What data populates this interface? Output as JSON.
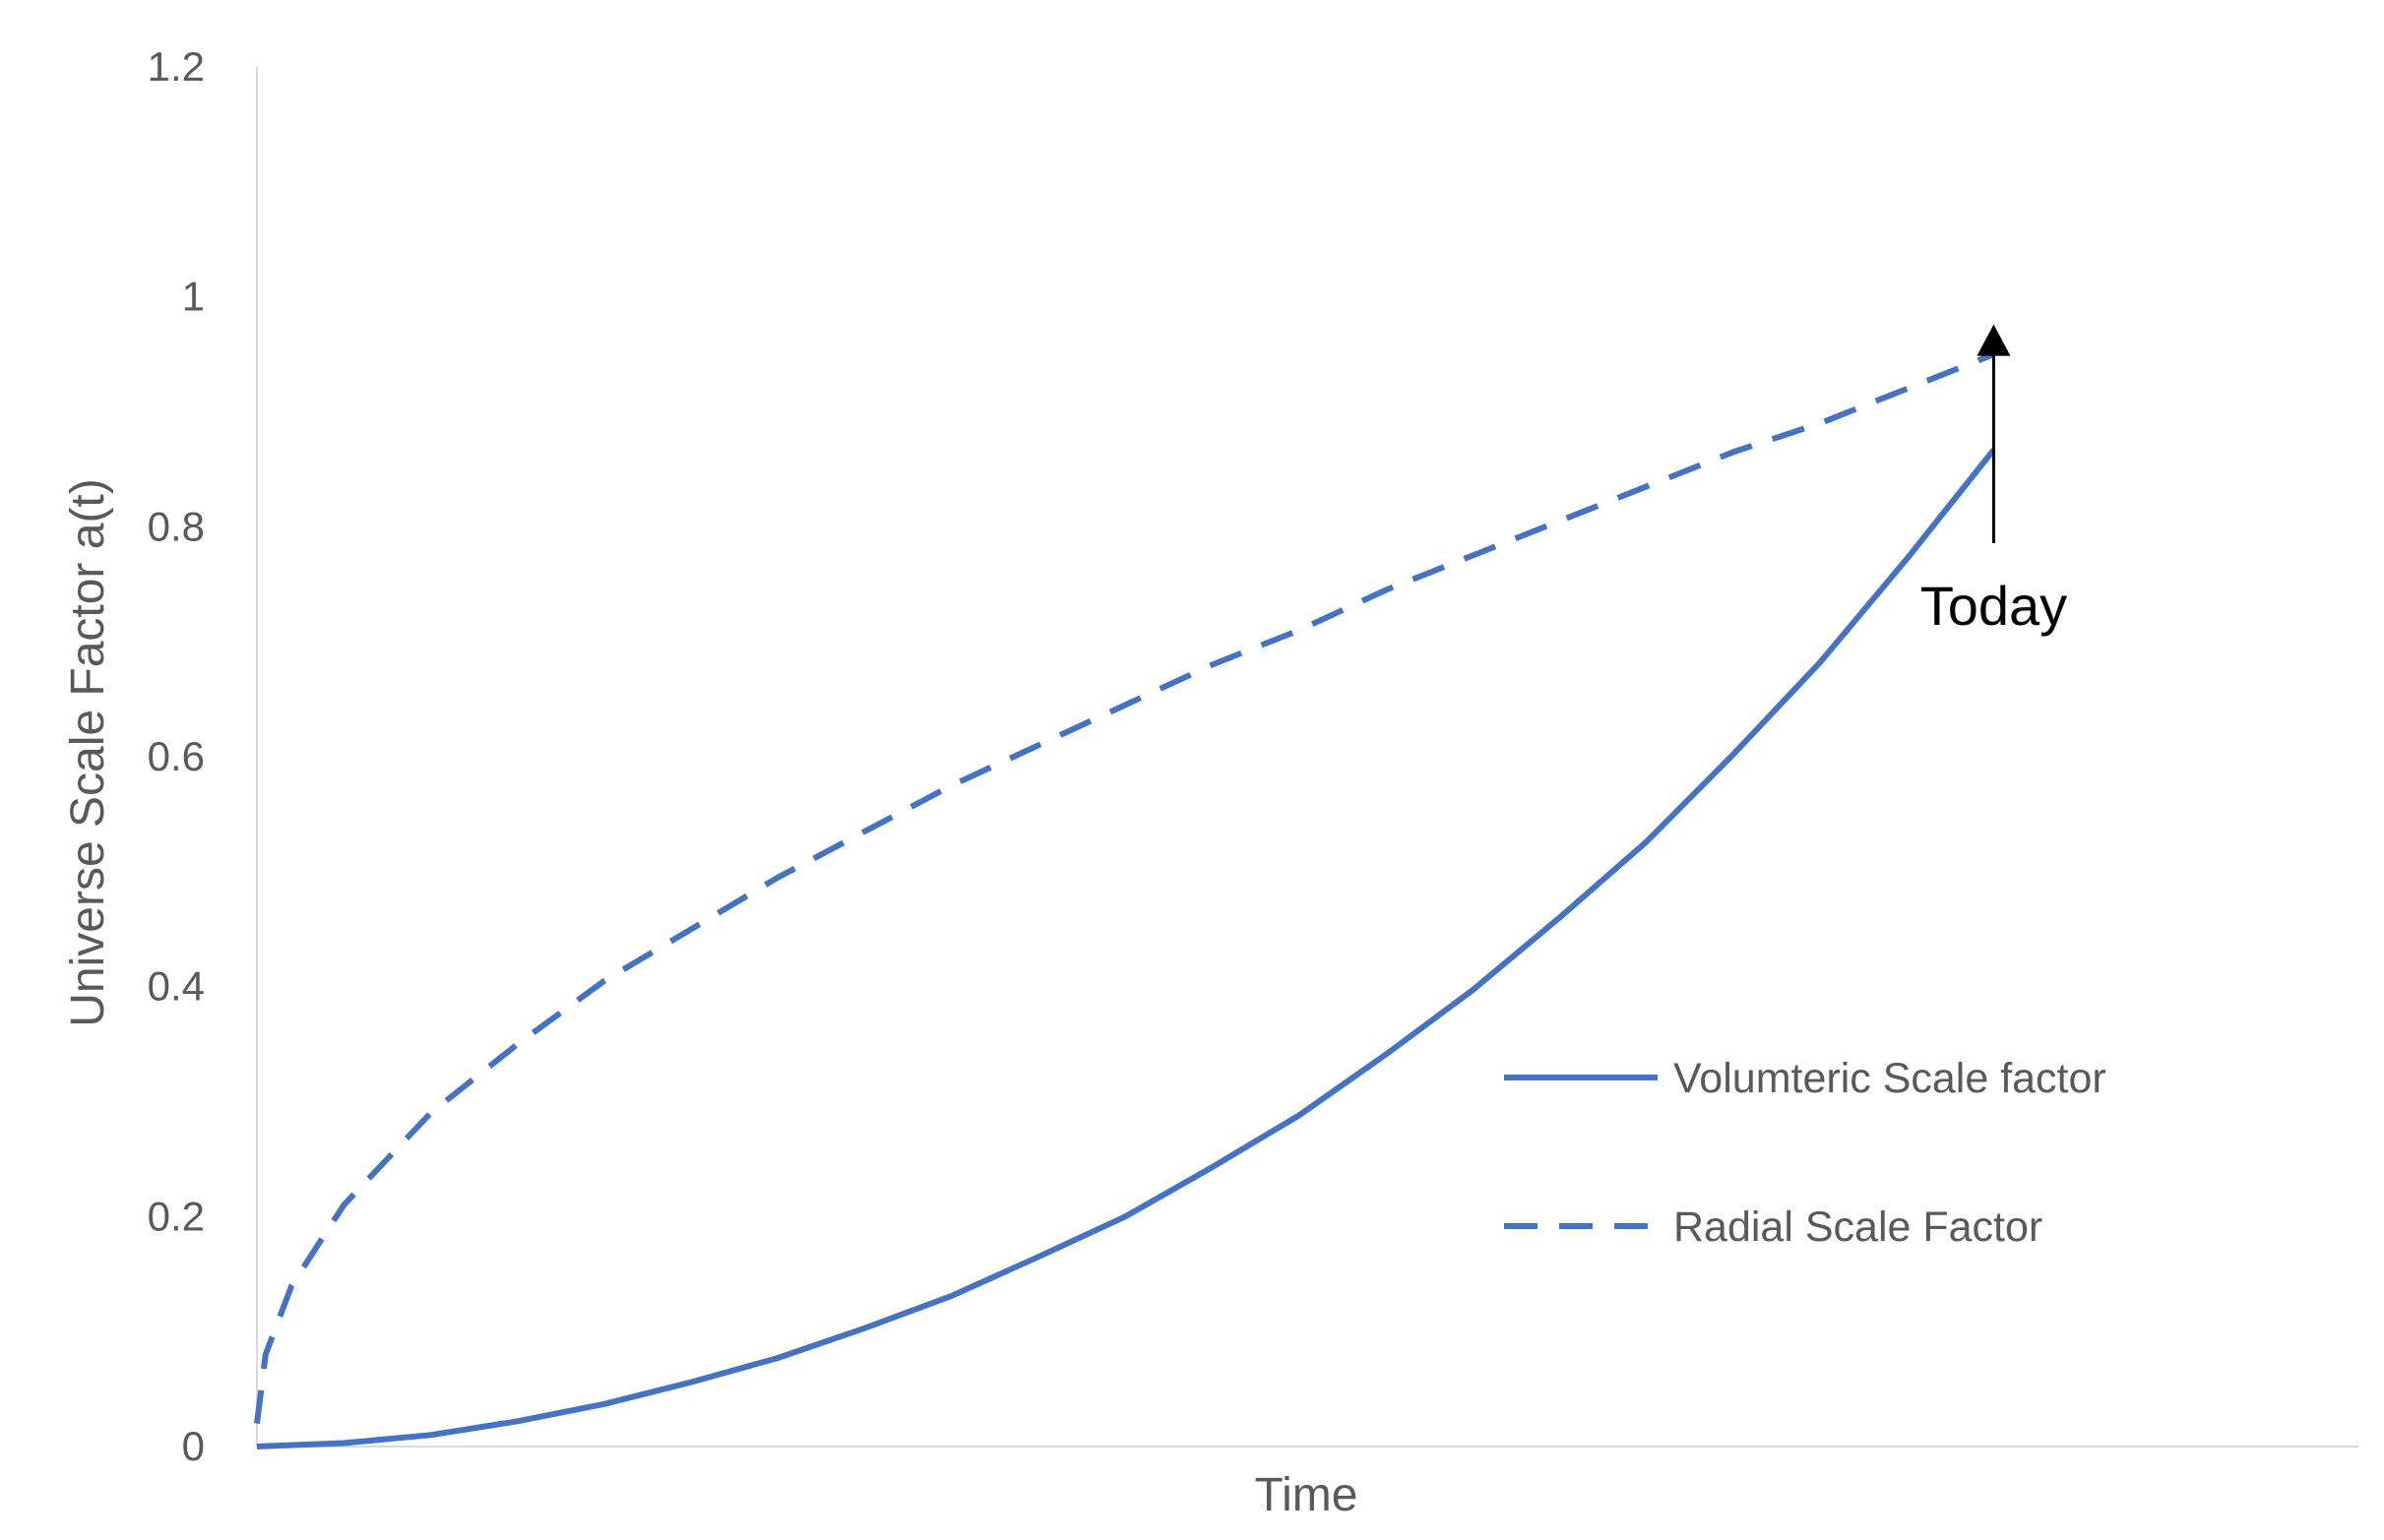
{
  "chart_data": {
    "type": "line",
    "title": "",
    "xlabel": "Time",
    "ylabel": "Universe Scale Factor a(t)",
    "ylim": [
      0,
      1.2
    ],
    "yticks": [
      0,
      0.2,
      0.4,
      0.6,
      0.8,
      1,
      1.2
    ],
    "ytick_labels": [
      "0",
      "0.2",
      "0.4",
      "0.6",
      "0.8",
      "1",
      "1.2"
    ],
    "x_range": [
      0,
      1.21
    ],
    "grid": false,
    "legend_position": "right",
    "colors": {
      "series": "#4472C4",
      "axis": "#D9D9D9",
      "text": "#595959",
      "annotation": "#000000"
    },
    "series": [
      {
        "name": "Volumteric Scale factor",
        "style": "solid",
        "x": [
          0,
          0.05,
          0.1,
          0.15,
          0.2,
          0.25,
          0.3,
          0.35,
          0.4,
          0.45,
          0.5,
          0.55,
          0.6,
          0.65,
          0.7,
          0.75,
          0.8,
          0.85,
          0.9,
          0.95,
          1.0
        ],
        "y": [
          0,
          0.003,
          0.01,
          0.022,
          0.037,
          0.056,
          0.077,
          0.103,
          0.131,
          0.165,
          0.2,
          0.243,
          0.288,
          0.341,
          0.397,
          0.46,
          0.526,
          0.602,
          0.682,
          0.772,
          0.867
        ]
      },
      {
        "name": "Radial Scale Factor",
        "style": "dashed",
        "x": [
          0,
          0.005,
          0.02,
          0.05,
          0.1,
          0.15,
          0.2,
          0.25,
          0.3,
          0.35,
          0.4,
          0.45,
          0.5,
          0.55,
          0.6,
          0.65,
          0.7,
          0.75,
          0.8,
          0.85,
          0.9,
          0.95,
          1.0
        ],
        "y": [
          0.02,
          0.08,
          0.14,
          0.21,
          0.29,
          0.35,
          0.405,
          0.45,
          0.495,
          0.535,
          0.575,
          0.61,
          0.645,
          0.68,
          0.71,
          0.745,
          0.775,
          0.805,
          0.835,
          0.865,
          0.89,
          0.92,
          0.95
        ]
      }
    ],
    "annotations": [
      {
        "text": "Today",
        "x": 1.0,
        "y": 1.0,
        "arrow": "up"
      }
    ]
  }
}
